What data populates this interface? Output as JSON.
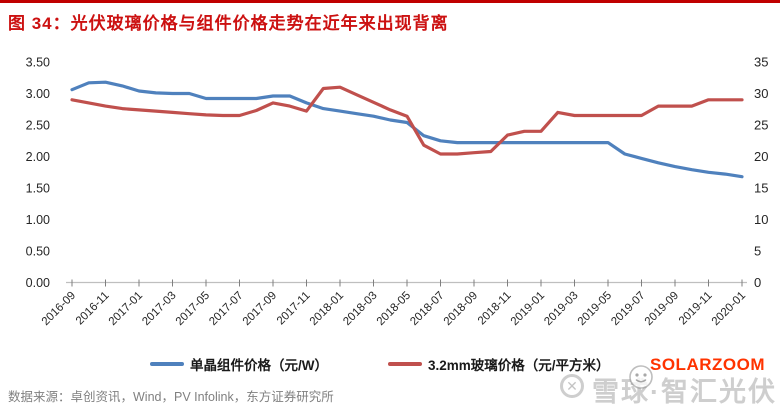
{
  "title": "图 34：光伏玻璃价格与组件价格走势在近年来出现背离",
  "source_note": "数据来源：卓创资讯，Wind，PV Infolink，东方证券研究所",
  "watermarks": {
    "solarzoom": "SOLARZOOM",
    "xueqiu_text": "雪球·智汇光伏",
    "xueqiu_logo_glyph": "✕"
  },
  "colors": {
    "module_line": "#4F81BD",
    "glass_line": "#C0504D",
    "title_red": "#CC1111",
    "rule_red": "#C00000",
    "axis_line": "#BFBFBF",
    "tick_mark": "#7F7F7F",
    "tick_text": "#262626",
    "source_gray": "#808080",
    "solarzoom_orange": "#FF3300"
  },
  "legend": {
    "items": [
      {
        "label": "单晶组件价格（元/W）",
        "color": "#4F81BD"
      },
      {
        "label": "3.2mm玻璃价格（元/平方米）",
        "color": "#C0504D"
      }
    ]
  },
  "chart_data": {
    "type": "line",
    "title": "光伏玻璃价格与组件价格走势",
    "grid": false,
    "legend_position": "bottom",
    "x": [
      "2016-09",
      "2016-10",
      "2016-11",
      "2016-12",
      "2017-01",
      "2017-02",
      "2017-03",
      "2017-04",
      "2017-05",
      "2017-06",
      "2017-07",
      "2017-08",
      "2017-09",
      "2017-10",
      "2017-11",
      "2017-12",
      "2018-01",
      "2018-02",
      "2018-03",
      "2018-04",
      "2018-05",
      "2018-06",
      "2018-07",
      "2018-08",
      "2018-09",
      "2018-10",
      "2018-11",
      "2018-12",
      "2019-01",
      "2019-02",
      "2019-03",
      "2019-04",
      "2019-05",
      "2019-06",
      "2019-07",
      "2019-08",
      "2019-09",
      "2019-10",
      "2019-11",
      "2019-12",
      "2020-01"
    ],
    "x_tick_labels": [
      "2016-09",
      "2016-11",
      "2017-01",
      "2017-03",
      "2017-05",
      "2017-07",
      "2017-09",
      "2017-11",
      "2018-01",
      "2018-03",
      "2018-05",
      "2018-07",
      "2018-09",
      "2018-11",
      "2019-01",
      "2019-03",
      "2019-05",
      "2019-07",
      "2019-09",
      "2019-11",
      "2020-01"
    ],
    "left_axis": {
      "min": 0,
      "max": 3.5,
      "step": 0.5,
      "tick_labels": [
        "3.50",
        "3.00",
        "2.50",
        "2.00",
        "1.50",
        "1.00",
        "0.50",
        "0.00"
      ]
    },
    "right_axis": {
      "min": 0,
      "max": 35,
      "step": 5,
      "tick_labels": [
        "35",
        "30",
        "25",
        "20",
        "15",
        "10",
        "5",
        "0"
      ]
    },
    "series": [
      {
        "name": "单晶组件价格（元/W）",
        "axis": "left",
        "color": "#4F81BD",
        "values": [
          3.06,
          3.17,
          3.18,
          3.12,
          3.04,
          3.01,
          3.0,
          3.0,
          2.92,
          2.92,
          2.92,
          2.92,
          2.96,
          2.96,
          2.85,
          2.76,
          2.72,
          2.68,
          2.64,
          2.58,
          2.54,
          2.33,
          2.25,
          2.22,
          2.22,
          2.22,
          2.22,
          2.22,
          2.22,
          2.22,
          2.22,
          2.22,
          2.22,
          2.04,
          1.97,
          1.9,
          1.84,
          1.79,
          1.75,
          1.72,
          1.68
        ]
      },
      {
        "name": "3.2mm玻璃价格（元/平方米）",
        "axis": "right",
        "color": "#C0504D",
        "values": [
          29.0,
          28.5,
          28.0,
          27.6,
          27.4,
          27.2,
          27.0,
          26.8,
          26.6,
          26.5,
          26.5,
          27.3,
          28.5,
          28.0,
          27.2,
          30.8,
          31.0,
          29.8,
          28.6,
          27.4,
          26.4,
          21.8,
          20.4,
          20.4,
          20.6,
          20.8,
          23.4,
          24.0,
          24.0,
          27.0,
          26.5,
          26.5,
          26.5,
          26.5,
          26.5,
          28.0,
          28.0,
          28.0,
          29.0,
          29.0,
          29.0
        ]
      }
    ]
  }
}
